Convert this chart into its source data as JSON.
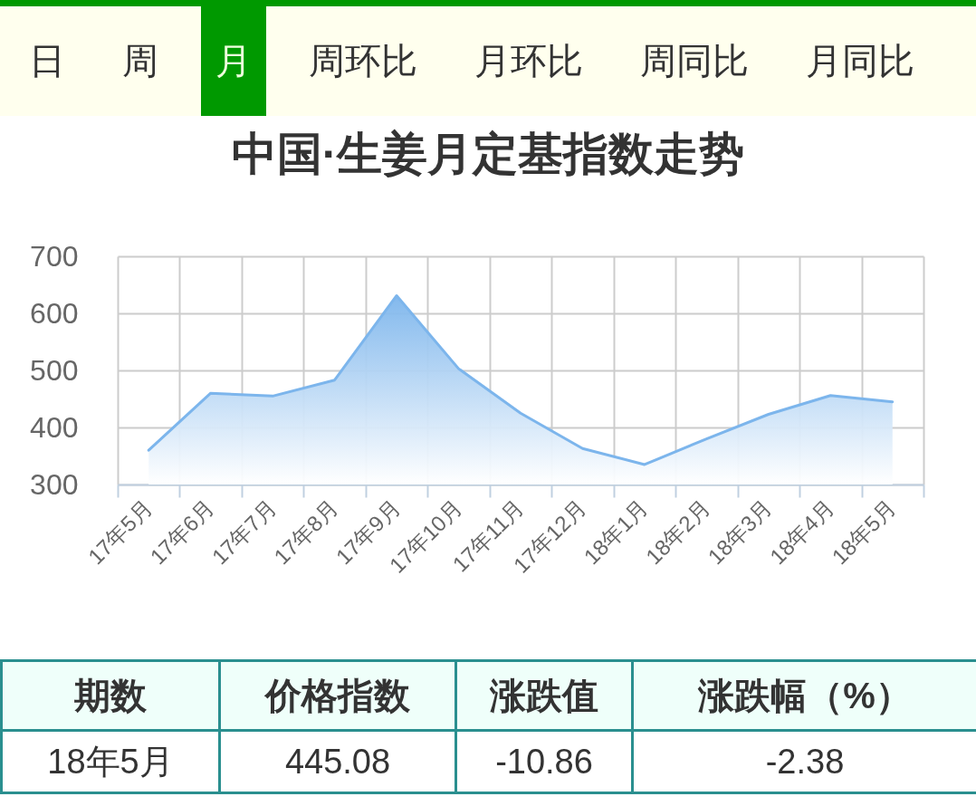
{
  "chart_data": [
    {
      "type": "other",
      "categories": [
        "日",
        "周",
        "月",
        "周环比",
        "月环比",
        "周同比",
        "月同比"
      ],
      "colors": [
        "#ffffee",
        "#ffffee",
        "#009900",
        "#ffffee",
        "#ffffee",
        "#ffffee",
        "#ffffee"
      ]
    },
    {
      "type": "area",
      "title": "中国·生姜月定基指数走势",
      "categories": [
        "17年5月",
        "17年6月",
        "17年7月",
        "17年8月",
        "17年9月",
        "17年10月",
        "17年11月",
        "17年12月",
        "18年1月",
        "18年2月",
        "18年3月",
        "18年4月",
        "18年5月"
      ],
      "series": [
        {
          "color": "#7cb5ec",
          "values": [
            360,
            460,
            455,
            483,
            631,
            503,
            425,
            363,
            335,
            380,
            423,
            456,
            445
          ]
        }
      ],
      "ylim": [
        300,
        700
      ],
      "yticks": [
        300,
        400,
        500,
        600,
        700
      ],
      "grid": true
    },
    {
      "type": "other",
      "categories": [
        "期数",
        "价格指数",
        "涨跌值",
        "涨跌幅（%）"
      ],
      "value_labels": [
        "18年5月",
        "445.08",
        "-10.86",
        "-2.38"
      ]
    }
  ]
}
